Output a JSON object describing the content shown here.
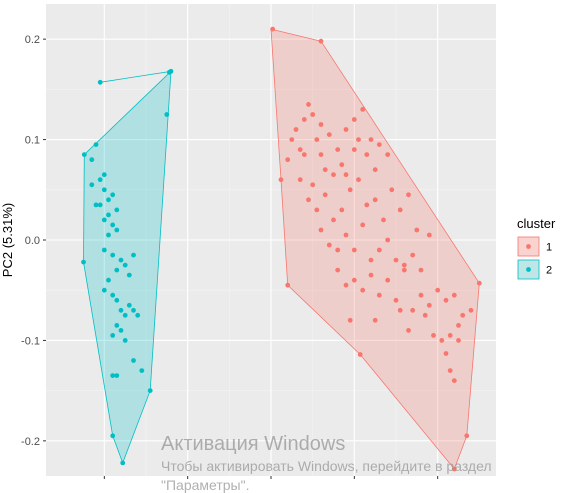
{
  "chart_data": {
    "type": "scatter",
    "title": "",
    "xlabel": "",
    "ylabel": "PC2 (5.31%)",
    "xlim": [
      -0.27,
      0.27
    ],
    "ylim": [
      -0.235,
      0.235
    ],
    "y_ticks": [
      -0.2,
      -0.1,
      0.0,
      0.1,
      0.2
    ],
    "y_tick_labels": [
      "-0.2",
      "-0.1",
      "0.0",
      "0.1",
      "0.2"
    ],
    "x_ticks": [
      -0.2,
      -0.1,
      0.0,
      0.1,
      0.2
    ],
    "grid": true,
    "panel_background": "#ebebeb",
    "legend": {
      "title": "cluster",
      "position": "right",
      "entries": [
        {
          "label": "1",
          "color": "#f8766d",
          "fill": "#f8d3d0"
        },
        {
          "label": "2",
          "color": "#00bfc4",
          "fill": "#bfe6e7"
        }
      ]
    },
    "series": [
      {
        "name": "1",
        "color": "#f8766d",
        "hull": [
          [
            0.0,
            0.21
          ],
          [
            0.06,
            0.198
          ],
          [
            0.25,
            -0.043
          ],
          [
            0.235,
            -0.195
          ],
          [
            0.22,
            -0.228
          ],
          [
            0.107,
            -0.114
          ],
          [
            0.02,
            -0.045
          ],
          [
            0.012,
            0.06
          ]
        ],
        "points": [
          [
            0.002,
            0.21
          ],
          [
            0.06,
            0.198
          ],
          [
            0.25,
            -0.043
          ],
          [
            0.235,
            -0.195
          ],
          [
            0.22,
            -0.228
          ],
          [
            0.107,
            -0.114
          ],
          [
            0.02,
            -0.045
          ],
          [
            0.012,
            0.06
          ],
          [
            0.02,
            0.08
          ],
          [
            0.04,
            0.12
          ],
          [
            0.05,
            0.125
          ],
          [
            0.03,
            0.11
          ],
          [
            0.045,
            0.135
          ],
          [
            0.055,
            0.1
          ],
          [
            0.07,
            0.105
          ],
          [
            0.08,
            0.09
          ],
          [
            0.06,
            0.085
          ],
          [
            0.065,
            0.07
          ],
          [
            0.075,
            0.065
          ],
          [
            0.085,
            0.075
          ],
          [
            0.09,
            0.11
          ],
          [
            0.1,
            0.12
          ],
          [
            0.11,
            0.13
          ],
          [
            0.12,
            0.1
          ],
          [
            0.13,
            0.095
          ],
          [
            0.14,
            0.085
          ],
          [
            0.035,
            0.06
          ],
          [
            0.045,
            0.04
          ],
          [
            0.055,
            0.03
          ],
          [
            0.065,
            0.045
          ],
          [
            0.075,
            0.02
          ],
          [
            0.085,
            0.03
          ],
          [
            0.095,
            0.05
          ],
          [
            0.105,
            0.06
          ],
          [
            0.115,
            0.035
          ],
          [
            0.125,
            0.04
          ],
          [
            0.135,
            0.02
          ],
          [
            0.145,
            0.05
          ],
          [
            0.155,
            0.03
          ],
          [
            0.165,
            0.045
          ],
          [
            0.175,
            0.01
          ],
          [
            0.06,
            0.01
          ],
          [
            0.07,
            -0.005
          ],
          [
            0.08,
            -0.01
          ],
          [
            0.09,
            0.005
          ],
          [
            0.1,
            -0.01
          ],
          [
            0.11,
            0.015
          ],
          [
            0.12,
            -0.02
          ],
          [
            0.13,
            -0.01
          ],
          [
            0.14,
            0.0
          ],
          [
            0.15,
            -0.02
          ],
          [
            0.16,
            -0.025
          ],
          [
            0.17,
            -0.015
          ],
          [
            0.18,
            -0.03
          ],
          [
            0.19,
            0.005
          ],
          [
            0.08,
            -0.03
          ],
          [
            0.09,
            -0.045
          ],
          [
            0.1,
            -0.04
          ],
          [
            0.11,
            -0.05
          ],
          [
            0.12,
            -0.035
          ],
          [
            0.13,
            -0.055
          ],
          [
            0.14,
            -0.04
          ],
          [
            0.15,
            -0.06
          ],
          [
            0.16,
            -0.03
          ],
          [
            0.17,
            -0.07
          ],
          [
            0.18,
            -0.055
          ],
          [
            0.19,
            -0.065
          ],
          [
            0.2,
            -0.05
          ],
          [
            0.21,
            -0.06
          ],
          [
            0.22,
            -0.055
          ],
          [
            0.095,
            -0.08
          ],
          [
            0.125,
            -0.08
          ],
          [
            0.155,
            -0.07
          ],
          [
            0.165,
            -0.09
          ],
          [
            0.185,
            -0.075
          ],
          [
            0.195,
            -0.095
          ],
          [
            0.205,
            -0.1
          ],
          [
            0.215,
            -0.095
          ],
          [
            0.225,
            -0.085
          ],
          [
            0.23,
            -0.075
          ],
          [
            0.21,
            -0.113
          ],
          [
            0.215,
            -0.13
          ],
          [
            0.22,
            -0.14
          ],
          [
            0.225,
            -0.1
          ],
          [
            0.24,
            -0.07
          ],
          [
            0.115,
            0.085
          ],
          [
            0.1,
            0.09
          ],
          [
            0.09,
            0.065
          ],
          [
            0.105,
            0.1
          ],
          [
            0.125,
            0.07
          ],
          [
            0.04,
            0.085
          ],
          [
            0.05,
            0.055
          ],
          [
            0.025,
            0.1
          ],
          [
            0.035,
            0.09
          ],
          [
            0.06,
            0.115
          ]
        ]
      },
      {
        "name": "2",
        "color": "#00bfc4",
        "hull": [
          [
            -0.205,
            0.157
          ],
          [
            -0.12,
            0.168
          ],
          [
            -0.224,
            0.085
          ],
          [
            -0.225,
            -0.022
          ],
          [
            -0.19,
            -0.195
          ],
          [
            -0.178,
            -0.222
          ],
          [
            -0.145,
            -0.15
          ],
          [
            -0.12,
            0.168
          ]
        ],
        "points": [
          [
            -0.205,
            0.157
          ],
          [
            -0.12,
            0.168
          ],
          [
            -0.224,
            0.085
          ],
          [
            -0.225,
            -0.022
          ],
          [
            -0.19,
            -0.195
          ],
          [
            -0.178,
            -0.222
          ],
          [
            -0.145,
            -0.15
          ],
          [
            -0.122,
            0.167
          ],
          [
            -0.125,
            0.125
          ],
          [
            -0.21,
            0.095
          ],
          [
            -0.215,
            0.08
          ],
          [
            -0.2,
            0.05
          ],
          [
            -0.195,
            0.04
          ],
          [
            -0.205,
            0.035
          ],
          [
            -0.19,
            0.045
          ],
          [
            -0.185,
            0.03
          ],
          [
            -0.195,
            0.025
          ],
          [
            -0.2,
            0.02
          ],
          [
            -0.19,
            0.015
          ],
          [
            -0.185,
            0.01
          ],
          [
            -0.195,
            0.005
          ],
          [
            -0.2,
            -0.01
          ],
          [
            -0.19,
            -0.015
          ],
          [
            -0.18,
            -0.02
          ],
          [
            -0.185,
            -0.03
          ],
          [
            -0.175,
            -0.025
          ],
          [
            -0.17,
            -0.035
          ],
          [
            -0.165,
            -0.015
          ],
          [
            -0.195,
            -0.04
          ],
          [
            -0.2,
            -0.05
          ],
          [
            -0.19,
            -0.055
          ],
          [
            -0.185,
            -0.06
          ],
          [
            -0.18,
            -0.07
          ],
          [
            -0.175,
            -0.075
          ],
          [
            -0.17,
            -0.065
          ],
          [
            -0.165,
            -0.07
          ],
          [
            -0.16,
            -0.075
          ],
          [
            -0.185,
            -0.085
          ],
          [
            -0.18,
            -0.09
          ],
          [
            -0.19,
            -0.095
          ],
          [
            -0.175,
            -0.1
          ],
          [
            -0.165,
            -0.12
          ],
          [
            -0.185,
            -0.135
          ],
          [
            -0.19,
            -0.135
          ],
          [
            -0.155,
            -0.13
          ],
          [
            -0.21,
            0.035
          ],
          [
            -0.205,
            0.06
          ],
          [
            -0.2,
            0.065
          ],
          [
            -0.215,
            0.055
          ]
        ]
      }
    ],
    "annotations": [
      "Активация Windows",
      "Чтобы активировать Windows, перейдите в раздел",
      "\"Параметры\"."
    ]
  }
}
